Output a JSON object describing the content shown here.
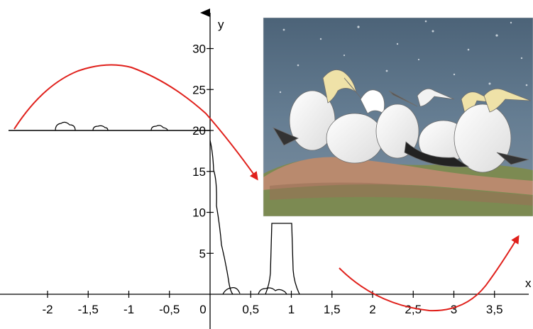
{
  "diagram": {
    "axes": {
      "x_label": "x",
      "y_label": "y",
      "x_ticks": [
        {
          "value": -2,
          "label": "-2"
        },
        {
          "value": -1.5,
          "label": "-1,5"
        },
        {
          "value": -1,
          "label": "-1"
        },
        {
          "value": -0.5,
          "label": "-0,5"
        },
        {
          "value": 0,
          "label": "0"
        },
        {
          "value": 0.5,
          "label": "0,5"
        },
        {
          "value": 1,
          "label": "1"
        },
        {
          "value": 1.5,
          "label": "1,5"
        },
        {
          "value": 2,
          "label": "2"
        },
        {
          "value": 2.5,
          "label": "2,5"
        },
        {
          "value": 3,
          "label": "3"
        },
        {
          "value": 3.5,
          "label": "3,5"
        }
      ],
      "y_ticks": [
        {
          "value": 5,
          "label": "5"
        },
        {
          "value": 10,
          "label": "10"
        },
        {
          "value": 15,
          "label": "15"
        },
        {
          "value": 20,
          "label": "20"
        },
        {
          "value": 25,
          "label": "25"
        },
        {
          "value": 30,
          "label": "30"
        }
      ]
    },
    "cliff_top_y": 20,
    "colors": {
      "trajectory": "#e0201b",
      "outline": "#000000",
      "sea": "#5d7388",
      "grass": "#7c8a52",
      "rock": "#b98a6e"
    },
    "photo": {
      "subject": "northern gannets on cliff edge",
      "icon": "gannet-photo"
    }
  }
}
